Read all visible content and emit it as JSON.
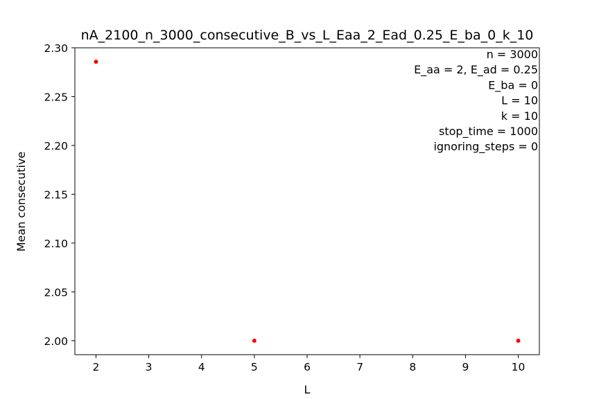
{
  "chart_data": {
    "type": "scatter",
    "title": "nA_2100_n_3000_consecutive_B_vs_L_Eaa_2_Ead_0.25_E_ba_0_k_10",
    "xlabel": "L",
    "ylabel": "Mean consecutive",
    "xlim": [
      1.6,
      10.4
    ],
    "ylim": [
      1.9857,
      2.3
    ],
    "xticks": [
      2,
      3,
      4,
      5,
      6,
      7,
      8,
      9,
      10
    ],
    "yticks": [
      2.0,
      2.05,
      2.1,
      2.15,
      2.2,
      2.25,
      2.3
    ],
    "ytick_labels": [
      "2.00",
      "2.05",
      "2.10",
      "2.15",
      "2.20",
      "2.25",
      "2.30"
    ],
    "grid": false,
    "marker_color": "#ff0000",
    "series": [
      {
        "x": [
          2,
          5,
          10
        ],
        "y": [
          2.2857,
          2.0,
          2.0
        ]
      }
    ],
    "annotation_lines": [
      "n = 3000",
      "E_aa = 2, E_ad = 0.25",
      "E_ba = 0",
      "L = 10",
      "k = 10",
      "stop_time = 1000",
      "ignoring_steps = 0"
    ]
  }
}
